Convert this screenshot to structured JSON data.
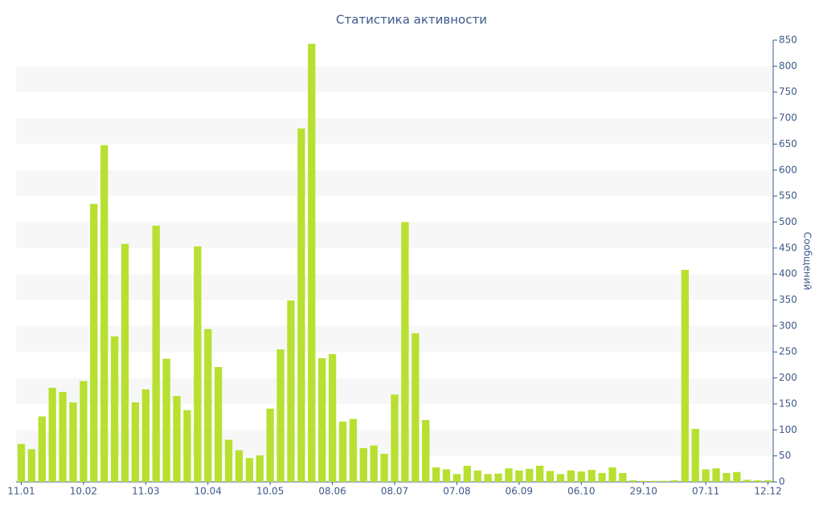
{
  "chart_data": {
    "type": "bar",
    "title": "Статистика активности",
    "y_label": "Сообщений",
    "y_axis_side": "right",
    "color": "#b7e030",
    "categories": [
      "11.01",
      null,
      null,
      null,
      null,
      null,
      "10.02",
      null,
      null,
      null,
      null,
      null,
      "11.03",
      null,
      null,
      null,
      null,
      null,
      "10.04",
      null,
      null,
      null,
      null,
      null,
      "10.05",
      null,
      null,
      null,
      null,
      null,
      "08.06",
      null,
      null,
      null,
      null,
      null,
      "08.07",
      null,
      null,
      null,
      null,
      null,
      "07.08",
      null,
      null,
      null,
      null,
      null,
      "06.09",
      null,
      null,
      null,
      null,
      null,
      "06.10",
      null,
      null,
      null,
      null,
      null,
      "29.10",
      null,
      null,
      null,
      null,
      null,
      "07.11",
      null,
      null,
      null,
      null,
      null,
      "12.12"
    ],
    "values": [
      73,
      63,
      126,
      181,
      173,
      153,
      194,
      535,
      648,
      280,
      458,
      153,
      178,
      493,
      237,
      165,
      138,
      453,
      294,
      221,
      81,
      61,
      46,
      51,
      141,
      255,
      349,
      680,
      843,
      238,
      246,
      116,
      121,
      65,
      70,
      54,
      168,
      500,
      286,
      119,
      28,
      24,
      15,
      31,
      22,
      15,
      16,
      26,
      22,
      25,
      31,
      21,
      15,
      22,
      20,
      23,
      17,
      28,
      17,
      3,
      2,
      2,
      2,
      3,
      408,
      102,
      24,
      26,
      17,
      19,
      4,
      3,
      3
    ],
    "ylim": [
      0,
      850
    ],
    "yticks": [
      0,
      50,
      100,
      150,
      200,
      250,
      300,
      350,
      400,
      450,
      500,
      550,
      600,
      650,
      700,
      750,
      800,
      850
    ],
    "grid": "bands"
  }
}
